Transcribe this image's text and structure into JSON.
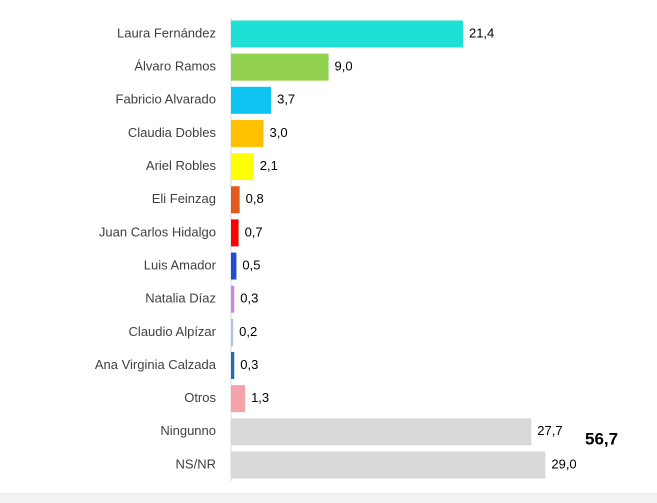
{
  "chart_data": {
    "type": "barh",
    "categories": [
      "Laura Fernández",
      "Álvaro Ramos",
      "Fabricio Alvarado",
      "Claudia Dobles",
      "Ariel Robles",
      "Eli Feinzag",
      "Juan Carlos Hidalgo",
      "Luis Amador",
      "Natalia Díaz",
      "Claudio Alpízar",
      "Ana Virginia Calzada",
      "Otros",
      "Ningunno",
      "NS/NR"
    ],
    "values": [
      21.4,
      9.0,
      3.7,
      3.0,
      2.1,
      0.8,
      0.7,
      0.5,
      0.3,
      0.2,
      0.3,
      1.3,
      27.7,
      29.0
    ],
    "value_labels": [
      "21,4",
      "9,0",
      "3,7",
      "3,0",
      "2,1",
      "0,8",
      "0,7",
      "0,5",
      "0,3",
      "0,2",
      "0,3",
      "1,3",
      "27,7",
      "29,0"
    ],
    "colors": [
      "#1fe0d6",
      "#92d050",
      "#0dc4f2",
      "#ffc000",
      "#ffff00",
      "#e35b1c",
      "#ff0000",
      "#1f4fd0",
      "#cf85e8",
      "#adc6e0",
      "#1f6fb5",
      "#f4a3ab",
      "#d9d9d9",
      "#d9d9d9"
    ],
    "annotation": "56,7"
  }
}
